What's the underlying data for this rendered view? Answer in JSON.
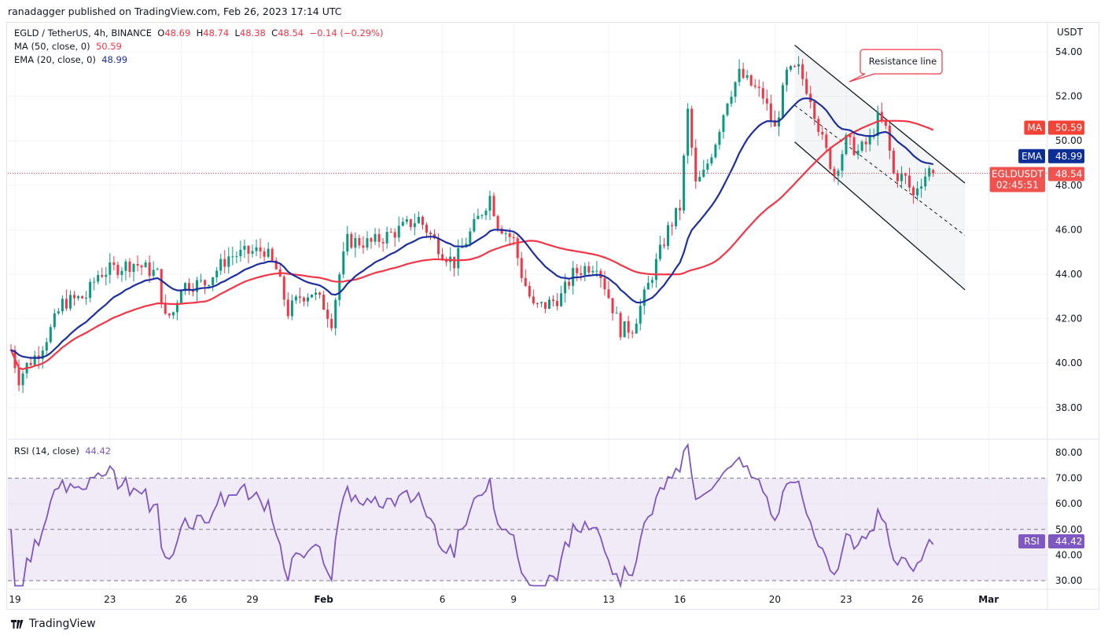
{
  "publisher_line": "ranadagger published on TradingView.com, Feb 26, 2023 17:14 UTC",
  "legend": {
    "symbol": "EGLD / TetherUS, 4h, BINANCE",
    "o_label": "O",
    "o": "48.69",
    "h_label": "H",
    "h": "48.74",
    "l_label": "L",
    "l": "48.38",
    "c_label": "C",
    "c": "48.54",
    "change": "−0.14 (−0.29%)",
    "ma_label": "MA (50, close, 0)",
    "ma_value": "50.59",
    "ema_label": "EMA (20, close, 0)",
    "ema_value": "48.99",
    "rsi_label": "RSI (14, close)",
    "rsi_value": "44.42"
  },
  "price_axis": {
    "unit": "USDT",
    "ticks": [
      "38.00",
      "40.00",
      "42.00",
      "44.00",
      "46.00",
      "48.00",
      "50.00",
      "52.00",
      "54.00"
    ]
  },
  "rsi_axis": {
    "ticks": [
      "30.00",
      "40.00",
      "50.00",
      "60.00",
      "70.00",
      "80.00"
    ]
  },
  "badges": {
    "ma": {
      "label": "MA",
      "value": "50.59"
    },
    "ema": {
      "label": "EMA",
      "value": "48.99"
    },
    "price": {
      "label": "EGLDUSDT",
      "value": "48.54",
      "countdown": "02:45:51"
    },
    "rsi": {
      "label": "RSI",
      "value": "44.42"
    }
  },
  "date_axis": [
    {
      "label": "19",
      "date": "2023-01-19"
    },
    {
      "label": "23",
      "date": "2023-01-23"
    },
    {
      "label": "26",
      "date": "2023-01-26"
    },
    {
      "label": "29",
      "date": "2023-01-29"
    },
    {
      "label": "Feb",
      "date": "2023-02-01"
    },
    {
      "label": "6",
      "date": "2023-02-06"
    },
    {
      "label": "9",
      "date": "2023-02-09"
    },
    {
      "label": "13",
      "date": "2023-02-13"
    },
    {
      "label": "16",
      "date": "2023-02-16"
    },
    {
      "label": "20",
      "date": "2023-02-20"
    },
    {
      "label": "23",
      "date": "2023-02-23"
    },
    {
      "label": "26",
      "date": "2023-02-26"
    },
    {
      "label": "Mar",
      "date": "2023-03-01"
    }
  ],
  "annotation": {
    "text": "Resistance line"
  },
  "brand": "TradingView",
  "colors": {
    "up": "#089981",
    "down": "#f23645",
    "ma": "#f23645",
    "ema": "#1c2fa0",
    "rsi": "#7e57c2",
    "rsi_band": "#ede7f6"
  },
  "chart_data": {
    "type": "candlestick",
    "symbol": "EGLDUSDT",
    "interval": "4h",
    "ylim": [
      37,
      55.5
    ],
    "rsi_ylim": [
      27,
      84
    ],
    "rsi_levels": [
      30,
      50,
      70
    ],
    "last_candle": {
      "date": "2023-02-26T16:00",
      "open": 48.69,
      "high": 48.74,
      "low": 48.38,
      "close": 48.54
    },
    "close_path": [
      [
        "2023-01-18T20:00",
        40.6
      ],
      [
        "2023-01-19T04:00",
        39.3
      ],
      [
        "2023-01-19T12:00",
        39.9
      ],
      [
        "2023-01-20T00:00",
        40.5
      ],
      [
        "2023-01-20T12:00",
        41.5
      ],
      [
        "2023-01-21T00:00",
        42.7
      ],
      [
        "2023-01-22T00:00",
        43.0
      ],
      [
        "2023-01-22T12:00",
        44.0
      ],
      [
        "2023-01-23T00:00",
        44.2
      ],
      [
        "2023-01-24T00:00",
        44.5
      ],
      [
        "2023-01-25T00:00",
        44.0
      ],
      [
        "2023-01-25T08:00",
        42.0
      ],
      [
        "2023-01-25T16:00",
        42.3
      ],
      [
        "2023-01-26T00:00",
        43.5
      ],
      [
        "2023-01-27T00:00",
        43.6
      ],
      [
        "2023-01-28T00:00",
        44.8
      ],
      [
        "2023-01-28T12:00",
        44.9
      ],
      [
        "2023-01-29T00:00",
        45.0
      ],
      [
        "2023-01-29T12:00",
        45.1
      ],
      [
        "2023-01-30T00:00",
        44.2
      ],
      [
        "2023-01-30T12:00",
        42.3
      ],
      [
        "2023-01-31T00:00",
        43.0
      ],
      [
        "2023-01-31T12:00",
        43.2
      ],
      [
        "2023-02-01T00:00",
        42.6
      ],
      [
        "2023-02-01T08:00",
        41.9
      ],
      [
        "2023-02-01T16:00",
        44.0
      ],
      [
        "2023-02-02T00:00",
        45.5
      ],
      [
        "2023-02-03T00:00",
        45.4
      ],
      [
        "2023-02-04T00:00",
        45.9
      ],
      [
        "2023-02-05T00:00",
        46.5
      ],
      [
        "2023-02-06T00:00",
        45.0
      ],
      [
        "2023-02-06T12:00",
        44.5
      ],
      [
        "2023-02-07T00:00",
        45.5
      ],
      [
        "2023-02-07T12:00",
        46.5
      ],
      [
        "2023-02-08T00:00",
        47.5
      ],
      [
        "2023-02-08T08:00",
        46.3
      ],
      [
        "2023-02-09T00:00",
        45.5
      ],
      [
        "2023-02-09T08:00",
        44.0
      ],
      [
        "2023-02-09T20:00",
        42.5
      ],
      [
        "2023-02-10T08:00",
        42.6
      ],
      [
        "2023-02-11T00:00",
        43.0
      ],
      [
        "2023-02-11T12:00",
        44.0
      ],
      [
        "2023-02-12T00:00",
        44.3
      ],
      [
        "2023-02-12T12:00",
        44.5
      ],
      [
        "2023-02-13T00:00",
        43.0
      ],
      [
        "2023-02-13T12:00",
        41.5
      ],
      [
        "2023-02-14T00:00",
        41.6
      ],
      [
        "2023-02-14T12:00",
        43.0
      ],
      [
        "2023-02-15T00:00",
        44.5
      ],
      [
        "2023-02-15T12:00",
        46.0
      ],
      [
        "2023-02-16T00:00",
        47.0
      ],
      [
        "2023-02-16T08:00",
        51.3
      ],
      [
        "2023-02-16T16:00",
        48.0
      ],
      [
        "2023-02-17T00:00",
        48.5
      ],
      [
        "2023-02-17T12:00",
        50.0
      ],
      [
        "2023-02-18T00:00",
        51.9
      ],
      [
        "2023-02-18T12:00",
        53.0
      ],
      [
        "2023-02-19T00:00",
        52.5
      ],
      [
        "2023-02-19T12:00",
        52.0
      ],
      [
        "2023-02-20T00:00",
        50.5
      ],
      [
        "2023-02-20T12:00",
        53.0
      ],
      [
        "2023-02-21T00:00",
        53.2
      ],
      [
        "2023-02-21T12:00",
        52.0
      ],
      [
        "2023-02-22T00:00",
        50.0
      ],
      [
        "2023-02-22T12:00",
        48.5
      ],
      [
        "2023-02-23T00:00",
        50.0
      ],
      [
        "2023-02-23T12:00",
        49.5
      ],
      [
        "2023-02-24T00:00",
        50.0
      ],
      [
        "2023-02-24T08:00",
        51.0
      ],
      [
        "2023-02-24T16:00",
        50.5
      ],
      [
        "2023-02-25T00:00",
        48.5
      ],
      [
        "2023-02-25T12:00",
        48.3
      ],
      [
        "2023-02-25T20:00",
        47.5
      ],
      [
        "2023-02-26T00:00",
        48.0
      ],
      [
        "2023-02-26T12:00",
        48.69
      ]
    ],
    "channel": {
      "upper": [
        [
          "2023-02-20T20:00",
          54.3
        ],
        [
          "2023-02-28T00:00",
          48.1
        ]
      ],
      "middle": [
        [
          "2023-02-20T20:00",
          51.6
        ],
        [
          "2023-02-28T00:00",
          45.75
        ]
      ],
      "lower": [
        [
          "2023-02-20T20:00",
          49.95
        ],
        [
          "2023-02-28T00:00",
          43.3
        ]
      ]
    }
  }
}
